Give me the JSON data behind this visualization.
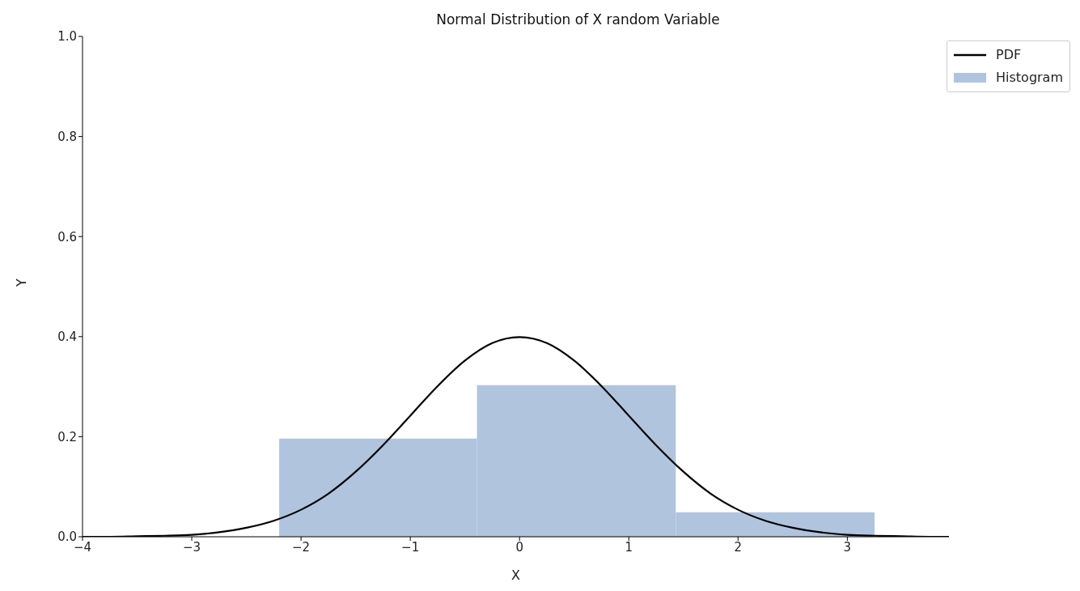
{
  "chart_data": {
    "type": "histogram",
    "title": "Normal Distribution of X random Variable",
    "xlabel": "X",
    "ylabel": "Y",
    "bins": [
      -2.2,
      -0.39,
      1.43,
      3.25
    ],
    "series": [
      {
        "type": "line",
        "name": "PDF",
        "color": "#000000",
        "x": [
          -4,
          -3.75,
          -3.5,
          -3.25,
          -3,
          -2.75,
          -2.5,
          -2.25,
          -2,
          -1.75,
          -1.5,
          -1.25,
          -1,
          -0.75,
          -0.5,
          -0.25,
          0,
          0.25,
          0.5,
          0.75,
          1,
          1.25,
          1.5,
          1.75,
          2,
          2.25,
          2.5,
          2.75,
          3,
          3.25,
          3.5,
          3.75,
          3.93
        ],
        "values": [
          0,
          0,
          0.001,
          0.002,
          0.004,
          0.009,
          0.018,
          0.032,
          0.054,
          0.086,
          0.13,
          0.183,
          0.242,
          0.301,
          0.352,
          0.387,
          0.399,
          0.387,
          0.352,
          0.301,
          0.242,
          0.183,
          0.13,
          0.086,
          0.054,
          0.032,
          0.018,
          0.009,
          0.004,
          0.002,
          0.001,
          0,
          0
        ]
      },
      {
        "name": "Histogram",
        "color": "#b0c4de",
        "values": [
          0.196,
          0.303,
          0.049
        ]
      }
    ],
    "xlim": [
      -4,
      3.93
    ],
    "ylim": [
      0,
      1
    ],
    "xticks": [
      {
        "value": -4,
        "label": "−4"
      },
      {
        "value": -3,
        "label": "−3"
      },
      {
        "value": -2,
        "label": "−2"
      },
      {
        "value": -1,
        "label": "−1"
      },
      0,
      1,
      2,
      3
    ],
    "yticks": [
      {
        "value": 0,
        "label": "0.0"
      },
      {
        "value": 0.2,
        "label": "0.2"
      },
      {
        "value": 0.4,
        "label": "0.4"
      },
      {
        "value": 0.6,
        "label": "0.6"
      },
      {
        "value": 0.8,
        "label": "0.8"
      },
      {
        "value": 1,
        "label": "1.0"
      }
    ],
    "grid": false,
    "legend": "top right",
    "marker": "none",
    "line_style": "solid"
  }
}
